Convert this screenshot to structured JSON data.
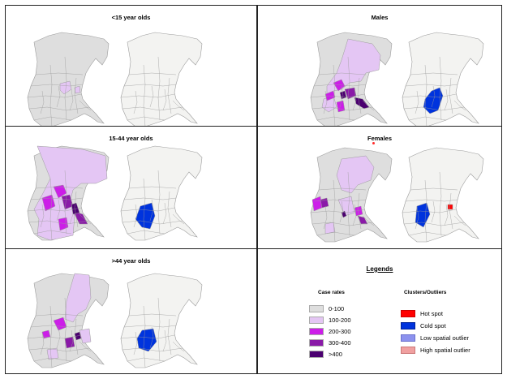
{
  "panels": [
    {
      "id": "p1",
      "title": "<15 year olds"
    },
    {
      "id": "p2",
      "title": "Males"
    },
    {
      "id": "p3",
      "title": "15-44 year olds"
    },
    {
      "id": "p4",
      "title": "Females"
    },
    {
      "id": "p5",
      "title": ">44 year olds"
    }
  ],
  "legend": {
    "title": "Legends",
    "case_rates": {
      "heading": "Case rates",
      "items": [
        {
          "label": "0-100",
          "color": "#dedede"
        },
        {
          "label": "100-200",
          "color": "#e4c6f4"
        },
        {
          "label": "200-300",
          "color": "#cc1ee8"
        },
        {
          "label": "300-400",
          "color": "#8a1aa8"
        },
        {
          "label": ">400",
          "color": "#4b0070"
        }
      ]
    },
    "clusters": {
      "heading": "Clusters/Outliers",
      "items": [
        {
          "label": "Hot spot",
          "color": "#ff0000"
        },
        {
          "label": "Cold spot",
          "color": "#0033dd"
        },
        {
          "label": "Low spatial outlier",
          "color": "#8c92ee"
        },
        {
          "label": "High spatial outlier",
          "color": "#f0a0a0"
        }
      ]
    }
  },
  "colors": {
    "base_rate": "#dedede",
    "base_cluster": "#f3f3f1",
    "district_line": "#9c9c9c"
  }
}
